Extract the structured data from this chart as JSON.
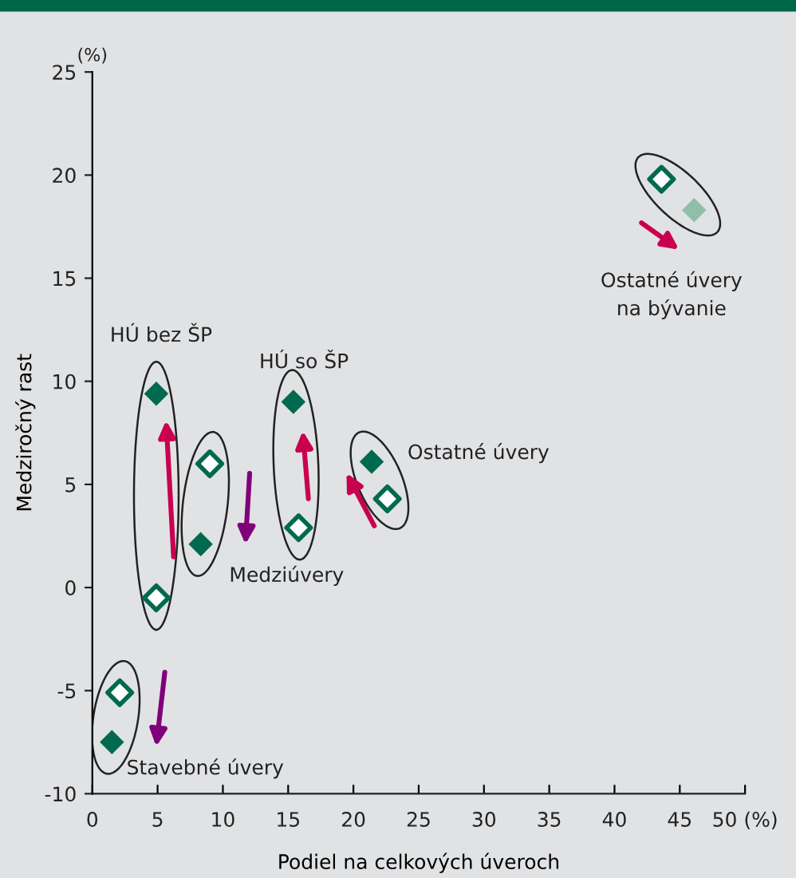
{
  "chart_data": {
    "type": "scatter",
    "xlabel": "Podiel na celkových úveroch",
    "ylabel": "Medziročný rast",
    "annotations": [
      "(%)",
      "Stavebné úvery",
      "HÚ bez ŠP",
      "Medziúvery",
      "HÚ so ŠP",
      "Ostatné úvery",
      "Ostatné úvery\nna bývanie"
    ],
    "series": [
      {
        "color": "#006a4e",
        "marker": "diamond",
        "x": [
          1.5,
          4.9,
          8.3,
          15.4,
          21.4,
          46.1
        ],
        "values": [
          -7.5,
          9.4,
          2.1,
          9.0,
          6.1,
          18.3
        ],
        "colors": [
          "#006a4e",
          "#006a4e",
          "#006a4e",
          "#006a4e",
          "#006a4e",
          "#8fbfaa"
        ]
      },
      {
        "color": "#ffffff",
        "marker": "diamond",
        "x": [
          2.1,
          4.9,
          9.0,
          15.8,
          22.6,
          43.6
        ],
        "values": [
          -5.1,
          -0.5,
          6.0,
          2.9,
          4.3,
          19.8
        ]
      }
    ],
    "xlim": [
      0,
      50
    ],
    "xticks": [
      0,
      5,
      10,
      15,
      20,
      25,
      30,
      35,
      40,
      45,
      {
        "value": 50,
        "label": "50 (%)"
      }
    ],
    "ylim": [
      -10,
      25
    ],
    "yticks": [
      -10,
      -5,
      0,
      5,
      10,
      15,
      20,
      25
    ],
    "grid": false,
    "legend": false
  }
}
